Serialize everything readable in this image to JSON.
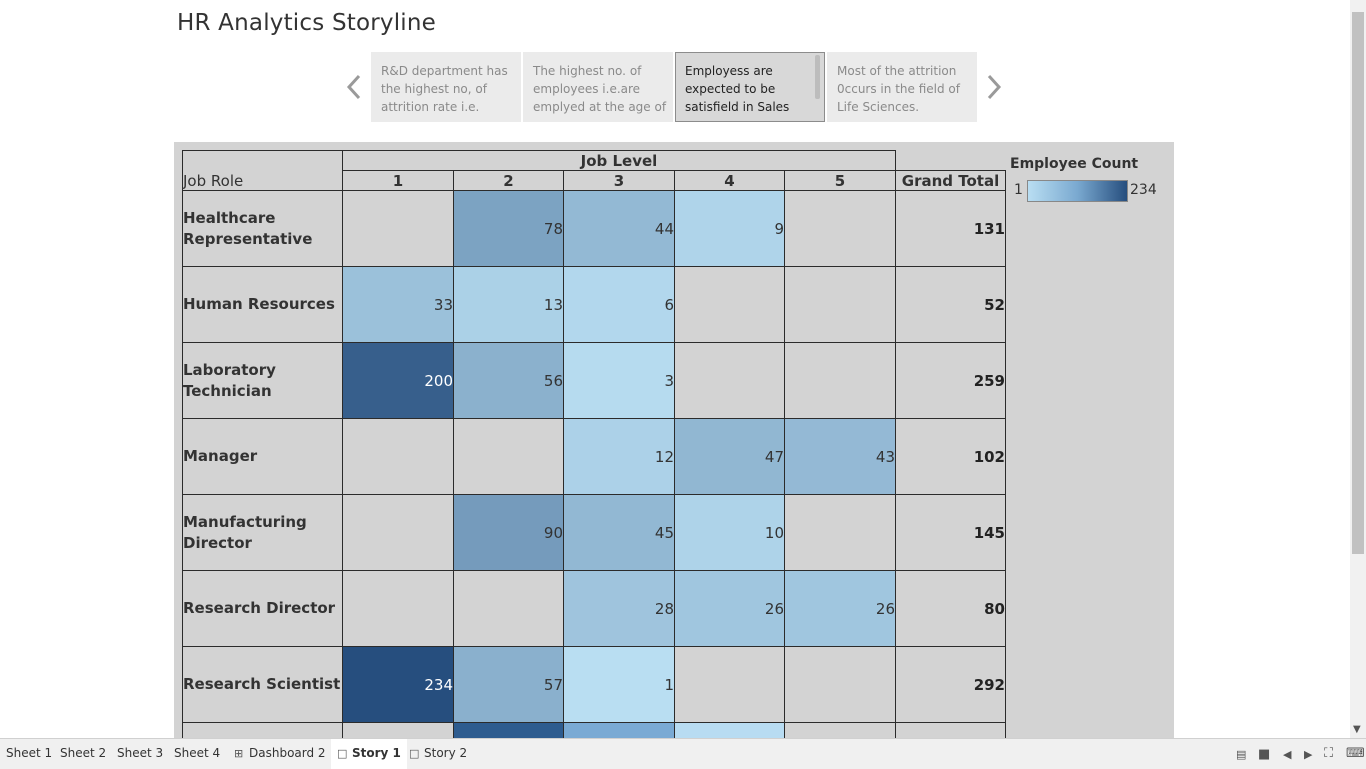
{
  "title": "HR Analytics Storyline",
  "story_points": [
    {
      "text": "R&D department has the highest no, of attrition rate i.e."
    },
    {
      "text": "The highest no. of employees i.e.are emplyed at the age of"
    },
    {
      "text": "Employess are expected to be satisfield in Sales"
    },
    {
      "text": "Most of the attrition 0ccurs in the field of Life Sciences."
    }
  ],
  "table": {
    "row_header": "Job Role",
    "col_group_header": "Job Level",
    "col_headers": [
      "1",
      "2",
      "3",
      "4",
      "5",
      "Grand Total"
    ],
    "rows": [
      {
        "role": "Healthcare Representative",
        "values": [
          "",
          "78",
          "44",
          "9",
          ""
        ],
        "total": "131"
      },
      {
        "role": "Human Resources",
        "values": [
          "33",
          "13",
          "6",
          "",
          ""
        ],
        "total": "52"
      },
      {
        "role": "Laboratory Technician",
        "values": [
          "200",
          "56",
          "3",
          "",
          ""
        ],
        "total": "259"
      },
      {
        "role": "Manager",
        "values": [
          "",
          "",
          "12",
          "47",
          "43"
        ],
        "total": "102"
      },
      {
        "role": "Manufacturing Director",
        "values": [
          "",
          "90",
          "45",
          "10",
          ""
        ],
        "total": "145"
      },
      {
        "role": "Research Director",
        "values": [
          "",
          "",
          "28",
          "26",
          "26"
        ],
        "total": "80"
      },
      {
        "role": "Research Scientist",
        "values": [
          "234",
          "57",
          "1",
          "",
          ""
        ],
        "total": "292"
      }
    ],
    "cut_row_colors": [
      "",
      "#2e5c8f",
      "#7aaad4",
      "#b8dcf2",
      "",
      ""
    ]
  },
  "legend": {
    "title": "Employee Count",
    "min": "1",
    "max": "234",
    "color_low": "#b9def2",
    "color_high": "#264e7e"
  },
  "tabs": [
    {
      "label": "Sheet 1",
      "icon": ""
    },
    {
      "label": "Sheet 2",
      "icon": ""
    },
    {
      "label": "Sheet 3",
      "icon": ""
    },
    {
      "label": "Sheet 4",
      "icon": ""
    },
    {
      "label": "Dashboard 2",
      "icon": "dashboard-icon"
    },
    {
      "label": "Story 1",
      "icon": "story-icon",
      "active": true
    },
    {
      "label": "Story 2",
      "icon": "story-icon"
    }
  ],
  "colors": {
    "background": "#d3d3d3",
    "empty_cell": "#d3d3d3"
  }
}
